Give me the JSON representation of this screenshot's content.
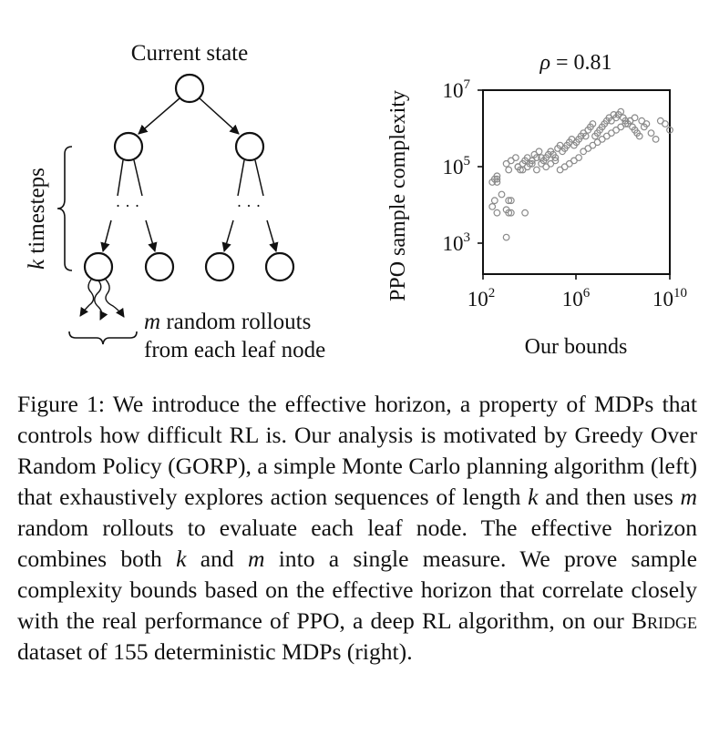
{
  "figure": {
    "left_panel": {
      "root_label": "Current state",
      "k_label": "k",
      "timesteps_label": "timesteps",
      "ellipsis_left": "· · ·",
      "ellipsis_right": "· · ·",
      "rollout_label_line1_var": "m",
      "rollout_label_line1_text": " random rollouts",
      "rollout_label_line2": "from each leaf node"
    },
    "right_panel": {
      "title_symbol": "ρ",
      "title_value": " = 0.81",
      "ylabel": "PPO sample complexity",
      "xlabel": "Our bounds",
      "y_ticks": [
        {
          "base": "10",
          "exp": "7"
        },
        {
          "base": "10",
          "exp": "5"
        },
        {
          "base": "10",
          "exp": "3"
        }
      ],
      "x_ticks": [
        {
          "base": "10",
          "exp": "2"
        },
        {
          "base": "10",
          "exp": "6"
        },
        {
          "base": "10",
          "exp": "10"
        }
      ],
      "marker_color": "#8a8a8a"
    },
    "caption": {
      "part1": "Figure 1: We introduce the effective horizon, a property of MDPs that controls how difficult RL is. Our analysis is motivated by Greedy Over Random Policy (GORP), a simple Monte Carlo planning algorithm (left) that exhaustively explores action sequences of length ",
      "var_k_1": "k",
      "part2": " and then uses ",
      "var_m_1": "m",
      "part3": " random rollouts to evaluate each leaf node. The effective horizon combines both ",
      "var_k_2": "k",
      "part4": " and ",
      "var_m_2": "m",
      "part5": " into a single measure. We prove sample complexity bounds based on the effective horizon that correlate closely with the real performance of PPO, a deep RL algorithm, on our ",
      "dataset_name": "Bridge",
      "part6": " dataset of 155 deterministic MDPs (right)."
    }
  },
  "chart_data": {
    "type": "scatter",
    "title": "ρ = 0.81",
    "xlabel": "Our bounds",
    "ylabel": "PPO sample complexity",
    "x_scale": "log10",
    "y_scale": "log10",
    "xlim": [
      100,
      10000000000
    ],
    "ylim": [
      10,
      10000000
    ],
    "x_ticks": [
      100,
      1000000,
      10000000000
    ],
    "y_ticks": [
      1000,
      100000,
      10000000
    ],
    "grid": false,
    "legend": "none",
    "series": [
      {
        "x": [
          251,
          316,
          398,
          398,
          398,
          251,
          316,
          631,
          398,
          1000,
          1259,
          1585,
          1259,
          1000,
          1585,
          6310,
          1000,
          1259,
          1585,
          2512,
          3162,
          3981,
          5012,
          6310,
          7943,
          10000,
          12589,
          15849,
          19953,
          25119,
          31623,
          39811,
          50119,
          63096,
          79433,
          100000,
          125893,
          158489,
          199526,
          251189,
          316228,
          398107,
          501187,
          630957,
          794328,
          1000000,
          1258925,
          1584893,
          1995262,
          2511886,
          3162278,
          3981072,
          5011872,
          6309573,
          7943282,
          10000000,
          12589254,
          15848932,
          19952623,
          25118864,
          31622777,
          39810717,
          50118723,
          63095734,
          79432823,
          100000000,
          125892541,
          158489319,
          199526231,
          251188643,
          316227766,
          398107171,
          501187234,
          630957344,
          794328235,
          1000000000,
          1584893192,
          2511886432,
          3981071706,
          6309573445,
          10000000000,
          3162,
          5012,
          7943,
          12589,
          19953,
          31623,
          50119,
          79433,
          125893,
          199526,
          316228,
          501187,
          794328,
          1258925,
          1995262,
          3162278,
          5011872,
          7943282,
          12589254,
          19952623,
          31622777,
          50118723,
          79432823,
          125892541,
          199526231,
          316227766
        ],
        "y": [
          10000,
          12589,
          10000,
          12589,
          15849,
          1585,
          2512,
          3981,
          1000,
          1259,
          1000,
          1000,
          2512,
          158,
          2512,
          1000,
          39811,
          25119,
          50119,
          63096,
          31623,
          25119,
          39811,
          50119,
          63096,
          39811,
          50119,
          79433,
          63096,
          100000,
          39811,
          50119,
          63096,
          79433,
          100000,
          79433,
          63096,
          125893,
          158489,
          100000,
          125893,
          158489,
          199526,
          251189,
          158489,
          199526,
          251189,
          316228,
          398107,
          316228,
          501187,
          630957,
          794328,
          316228,
          398107,
          501187,
          630957,
          794328,
          1000000,
          1258925,
          1000000,
          1584893,
          1258925,
          1584893,
          1995262,
          1258925,
          1000000,
          794328,
          1000000,
          630957,
          501187,
          398107,
          316228,
          1000000,
          630957,
          794328,
          398107,
          251189,
          1000000,
          794328,
          501187,
          31623,
          25119,
          31623,
          39811,
          25119,
          63096,
          31623,
          39811,
          50119,
          25119,
          31623,
          39811,
          50119,
          63096,
          100000,
          125893,
          158489,
          199526,
          251189,
          316228,
          398107,
          501187,
          630957,
          794328,
          1000000,
          1258925
        ]
      }
    ]
  }
}
